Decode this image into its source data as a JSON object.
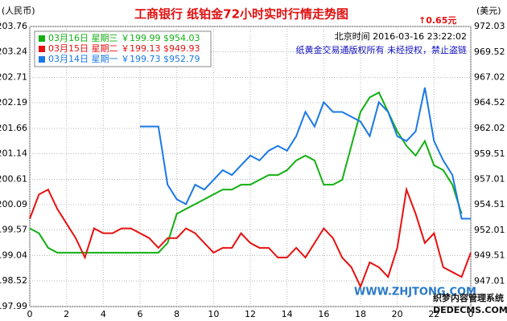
{
  "chart_data": {
    "type": "line",
    "title": "工商银行  纸铂金72小时实时行情走势图",
    "change_note": "↑0.65元",
    "y_label": "(人民币)",
    "y2_label": "(美元)",
    "timestamp": "北京时间  2016-03-16  23:22:02",
    "copyright": "纸黄金交易通版权所有  未经授权，禁止盗链",
    "watermarks": [
      "WWW.ZHJTONG.COM",
      "织梦内容管理系统",
      "DEDECMS.COM"
    ],
    "grid": true,
    "x": [
      0,
      0.5,
      1,
      1.5,
      2,
      2.5,
      3,
      3.5,
      4,
      4.5,
      5,
      5.5,
      6,
      6.5,
      7,
      7.5,
      8,
      8.5,
      9,
      9.5,
      10,
      10.5,
      11,
      11.5,
      12,
      12.5,
      13,
      13.5,
      14,
      14.5,
      15,
      15.5,
      16,
      16.5,
      17,
      17.5,
      18,
      18.5,
      19,
      19.5,
      20,
      20.5,
      21,
      21.5,
      22,
      22.5,
      23,
      23.5,
      24
    ],
    "xlim": [
      0,
      24
    ],
    "xticks": [
      0,
      2,
      4,
      6,
      8,
      10,
      12,
      14,
      16,
      18,
      20,
      22,
      {
        "value": 24,
        "label": "0"
      }
    ],
    "ylim": [
      197.99,
      203.76
    ],
    "yticks": [
      197.99,
      198.52,
      199.04,
      199.57,
      200.09,
      200.61,
      201.14,
      201.66,
      202.19,
      202.71,
      203.24,
      203.76
    ],
    "y2lim": [
      944.51,
      972.03
    ],
    "y2ticks": [
      947.01,
      949.51,
      952.01,
      954.51,
      957.01,
      959.51,
      962.02,
      964.52,
      967.02,
      969.52,
      972.03
    ],
    "series": [
      {
        "name": "03月16日 星期三 ￥199.99 $954.03",
        "color": "#13b013",
        "values": [
          199.6,
          199.5,
          199.2,
          199.1,
          199.1,
          199.1,
          199.1,
          199.1,
          199.1,
          199.1,
          199.1,
          199.1,
          199.1,
          199.1,
          199.1,
          199.3,
          199.9,
          200.0,
          200.1,
          200.2,
          200.3,
          200.4,
          200.4,
          200.5,
          200.5,
          200.6,
          200.7,
          200.7,
          200.8,
          201.0,
          201.1,
          201.0,
          200.5,
          200.5,
          200.6,
          201.3,
          202.0,
          202.3,
          202.4,
          202.0,
          201.6,
          201.3,
          201.1,
          201.4,
          200.9,
          200.8,
          200.5,
          199.9,
          null
        ]
      },
      {
        "name": "03月15日 星期二 ￥199.13 $949.93",
        "color": "#e81010",
        "values": [
          199.8,
          200.3,
          200.4,
          200.0,
          199.7,
          199.4,
          199.0,
          199.6,
          199.5,
          199.5,
          199.6,
          199.6,
          199.5,
          199.4,
          199.2,
          199.4,
          199.4,
          199.6,
          199.5,
          199.3,
          199.1,
          199.2,
          199.2,
          199.5,
          199.3,
          199.2,
          199.2,
          199.0,
          199.0,
          199.2,
          199.0,
          199.3,
          199.6,
          199.4,
          199.0,
          198.8,
          198.4,
          198.9,
          198.8,
          198.6,
          199.2,
          200.4,
          199.9,
          199.3,
          199.5,
          198.8,
          198.7,
          198.6,
          199.1
        ]
      },
      {
        "name": "03月14日 星期一 ￥199.73 $952.79",
        "color": "#1a78e6",
        "values": [
          null,
          null,
          null,
          null,
          null,
          null,
          null,
          null,
          null,
          null,
          null,
          null,
          201.7,
          201.7,
          201.7,
          200.5,
          200.2,
          200.1,
          200.5,
          200.4,
          200.6,
          200.8,
          200.7,
          200.9,
          201.1,
          201.0,
          201.2,
          201.3,
          201.2,
          201.5,
          202.0,
          201.7,
          202.2,
          202.0,
          202.0,
          201.9,
          201.8,
          201.5,
          202.2,
          202.0,
          201.5,
          201.4,
          201.6,
          202.5,
          201.4,
          201.0,
          200.7,
          199.8,
          199.8
        ]
      }
    ]
  }
}
